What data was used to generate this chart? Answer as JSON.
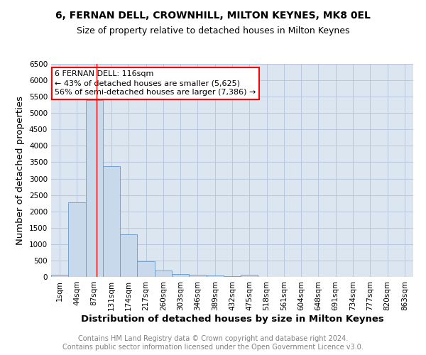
{
  "title": "6, FERNAN DELL, CROWNHILL, MILTON KEYNES, MK8 0EL",
  "subtitle": "Size of property relative to detached houses in Milton Keynes",
  "xlabel": "Distribution of detached houses by size in Milton Keynes",
  "ylabel": "Number of detached properties",
  "footnote1": "Contains HM Land Registry data © Crown copyright and database right 2024.",
  "footnote2": "Contains public sector information licensed under the Open Government Licence v3.0.",
  "annotation_title": "6 FERNAN DELL: 116sqm",
  "annotation_line1": "← 43% of detached houses are smaller (5,625)",
  "annotation_line2": "56% of semi-detached houses are larger (7,386) →",
  "bin_labels": [
    "1sqm",
    "44sqm",
    "87sqm",
    "131sqm",
    "174sqm",
    "217sqm",
    "260sqm",
    "303sqm",
    "346sqm",
    "389sqm",
    "432sqm",
    "475sqm",
    "518sqm",
    "561sqm",
    "604sqm",
    "648sqm",
    "691sqm",
    "734sqm",
    "777sqm",
    "820sqm",
    "863sqm"
  ],
  "bar_heights": [
    75,
    2280,
    5400,
    3380,
    1310,
    475,
    185,
    90,
    65,
    40,
    15,
    60,
    0,
    0,
    0,
    0,
    0,
    0,
    0,
    0,
    0
  ],
  "bar_color": "#c9d9ec",
  "bar_edge_color": "#6699cc",
  "red_line_x": 2.63,
  "ylim": [
    0,
    6500
  ],
  "yticks": [
    0,
    500,
    1000,
    1500,
    2000,
    2500,
    3000,
    3500,
    4000,
    4500,
    5000,
    5500,
    6000,
    6500
  ],
  "bg_color": "#ffffff",
  "plot_bg_color": "#dce6f1",
  "grid_color": "#b8c8dc",
  "title_fontsize": 10,
  "subtitle_fontsize": 9,
  "axis_label_fontsize": 9.5,
  "tick_fontsize": 7.5,
  "annotation_fontsize": 8,
  "footnote_fontsize": 7
}
